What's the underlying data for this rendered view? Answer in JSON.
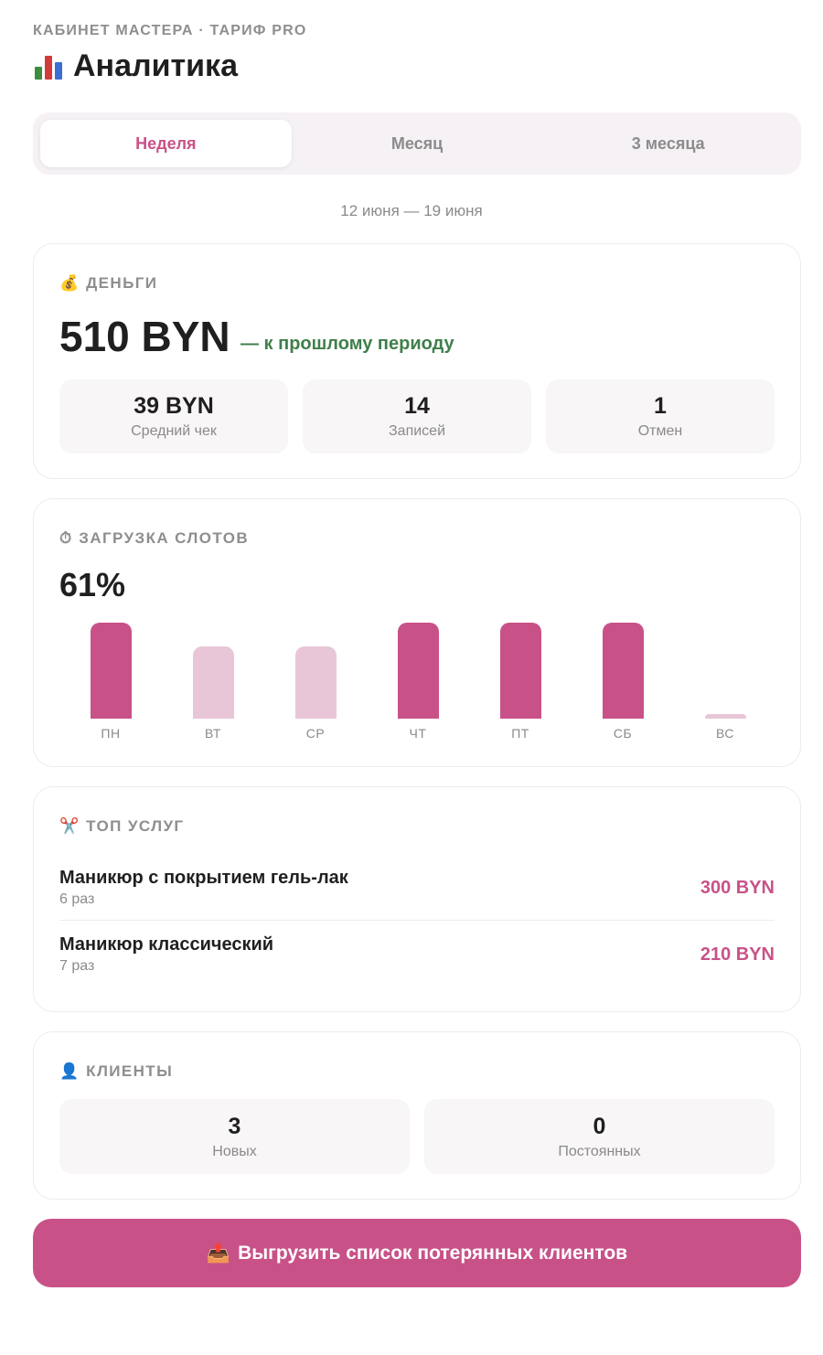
{
  "header": {
    "eyebrow": "КАБИНЕТ МАСТЕРА · ТАРИФ PRO",
    "title": "Аналитика",
    "title_icon": "bar-chart-icon"
  },
  "tabs": [
    {
      "label": "Неделя",
      "active": true
    },
    {
      "label": "Месяц",
      "active": false
    },
    {
      "label": "3 месяца",
      "active": false
    }
  ],
  "period": "12 июня — 19 июня",
  "money": {
    "heading_icon": "💰",
    "heading": "ДЕНЬГИ",
    "total": "510 BYN",
    "delta": "— к прошлому периоду",
    "stats": [
      {
        "value": "39 BYN",
        "label": "Средний чек"
      },
      {
        "value": "14",
        "label": "Записей"
      },
      {
        "value": "1",
        "label": "Отмен"
      }
    ]
  },
  "slots": {
    "heading_icon": "⏱",
    "heading": "ЗАГРУЗКА СЛОТОВ",
    "percent": "61%"
  },
  "chart_data": {
    "type": "bar",
    "categories": [
      "ПН",
      "ВТ",
      "СР",
      "ЧТ",
      "ПТ",
      "СБ",
      "ВС"
    ],
    "values": [
      100,
      75,
      75,
      100,
      100,
      100,
      5
    ],
    "ylim": [
      0,
      100
    ],
    "highlight_threshold": 100,
    "colors": {
      "high": "#c85288",
      "low": "#e8c6d8"
    }
  },
  "top_services": {
    "heading_icon": "✂️",
    "heading": "ТОП УСЛУГ",
    "items": [
      {
        "name": "Маникюр с покрытием гель-лак",
        "count": "6 раз",
        "sum": "300 BYN"
      },
      {
        "name": "Маникюр классический",
        "count": "7 раз",
        "sum": "210 BYN"
      }
    ]
  },
  "clients": {
    "heading_icon": "👤",
    "heading": "КЛИЕНТЫ",
    "stats": [
      {
        "value": "3",
        "label": "Новых"
      },
      {
        "value": "0",
        "label": "Постоянных"
      }
    ]
  },
  "export_button": {
    "icon": "📤",
    "label": "Выгрузить список потерянных клиентов"
  },
  "colors": {
    "accent": "#c85288",
    "positive": "#3f7f4b"
  }
}
